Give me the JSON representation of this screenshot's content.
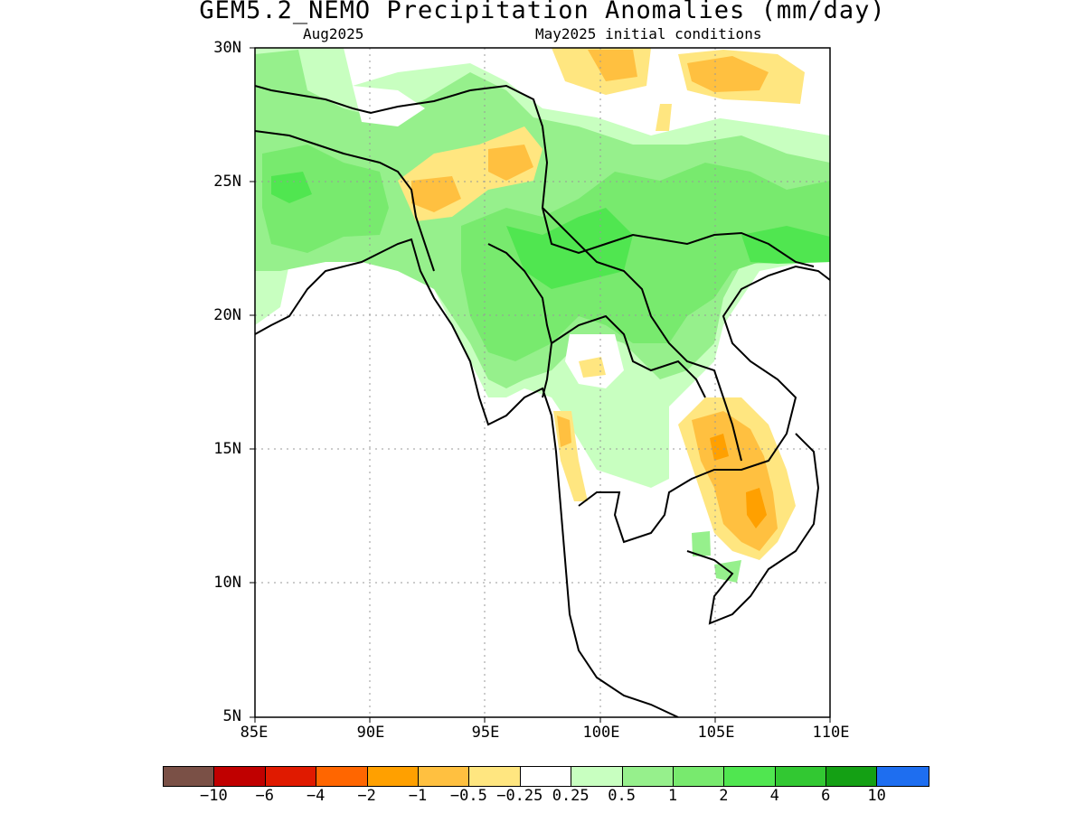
{
  "title": "GEM5.2_NEMO Precipitation Anomalies (mm/day)",
  "subtitle_left": "Aug2025",
  "subtitle_right": "May2025 initial conditions",
  "lat_labels": [
    "30N",
    "25N",
    "20N",
    "15N",
    "10N",
    "5N"
  ],
  "lon_labels": [
    "85E",
    "90E",
    "95E",
    "100E",
    "105E",
    "110E"
  ],
  "legend": {
    "colors": [
      "#7a5046",
      "#c00000",
      "#e01a00",
      "#ff6600",
      "#ffa000",
      "#ffc040",
      "#ffe680",
      "#ffffff",
      "#c8ffc0",
      "#96f08c",
      "#78ea6e",
      "#50e650",
      "#32c832",
      "#14a014",
      "#1e6ef0"
    ],
    "labels": [
      "−10",
      "−6",
      "−4",
      "−2",
      "−1",
      "−0.5",
      "−0.25",
      "0.25",
      "0.5",
      "1",
      "2",
      "4",
      "6",
      "10"
    ]
  },
  "map": {
    "extent": {
      "lon": [
        85,
        110
      ],
      "lat": [
        5,
        30
      ]
    },
    "grid_lines": true,
    "anomaly_regions": [
      {
        "category": "0.5",
        "color": "#96f08c",
        "note": "broad positive anomaly over Bangladesh, Myanmar, southern China, northern Laos"
      },
      {
        "category": "2",
        "color": "#78ea6e",
        "note": "core positive anomaly central Myanmar / Yunnan"
      },
      {
        "category": "-0.5",
        "color": "#ffc040",
        "note": "negative anomaly Cambodia / southern Vietnam, NE India, Tibet"
      },
      {
        "category": "-1",
        "color": "#ffa000",
        "note": "strongest negative anomaly over Cambodia"
      }
    ]
  }
}
